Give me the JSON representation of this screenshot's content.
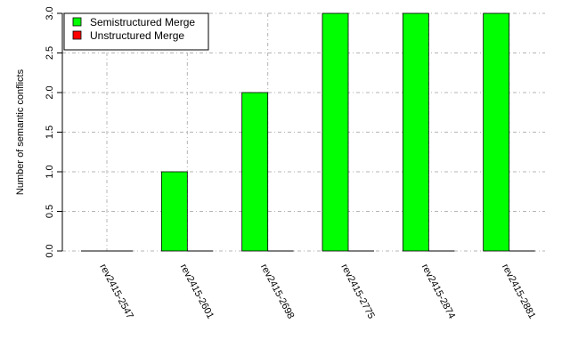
{
  "chart_data": {
    "type": "bar",
    "title": "",
    "xlabel": "",
    "ylabel": "Number of semantic conflicts",
    "ylim": [
      0,
      3
    ],
    "yticks": [
      "0.0",
      "0.5",
      "1.0",
      "1.5",
      "2.0",
      "2.5",
      "3.0"
    ],
    "grid": true,
    "legend_position": "top-left",
    "categories": [
      "rev2415-2547",
      "rev2415-2601",
      "rev2415-2698",
      "rev2415-2775",
      "rev2415-2874",
      "rev2415-2881"
    ],
    "series": [
      {
        "name": "Semistructured Merge",
        "color": "#00ff00",
        "values": [
          0,
          1,
          2,
          3,
          3,
          3
        ]
      },
      {
        "name": "Unstructured Merge",
        "color": "#ff0000",
        "values": [
          0,
          0,
          0,
          0,
          0,
          0
        ]
      }
    ]
  }
}
